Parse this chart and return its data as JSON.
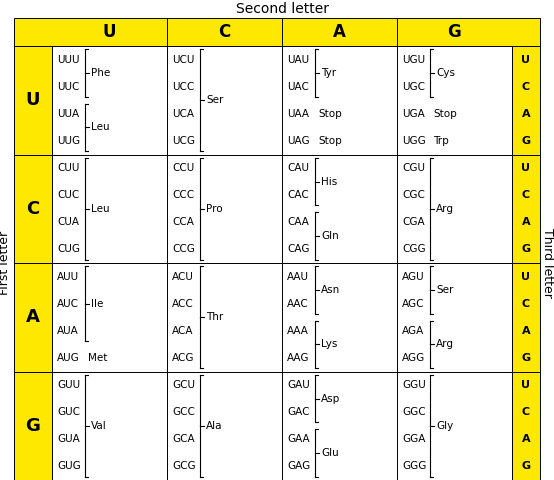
{
  "title": "Second letter",
  "first_letter_label": "First letter",
  "third_letter_label": "Third letter",
  "second_letters": [
    "U",
    "C",
    "A",
    "G"
  ],
  "first_letters": [
    "U",
    "C",
    "A",
    "G"
  ],
  "third_letters": [
    "U",
    "C",
    "A",
    "G"
  ],
  "yellow": "#FFE800",
  "white": "#FFFFFF",
  "cells": {
    "UU": {
      "codons": [
        "UUU",
        "UUC",
        "UUA",
        "UUG"
      ],
      "groups": [
        {
          "aa": "Phe",
          "rows": [
            0,
            1
          ]
        },
        {
          "aa": "Leu",
          "rows": [
            2,
            3
          ]
        }
      ]
    },
    "UC": {
      "codons": [
        "UCU",
        "UCC",
        "UCA",
        "UCG"
      ],
      "groups": [
        {
          "aa": "Ser",
          "rows": [
            0,
            1,
            2,
            3
          ]
        }
      ]
    },
    "UA": {
      "codons": [
        "UAU",
        "UAC",
        "UAA",
        "UAG"
      ],
      "groups": [
        {
          "aa": "Tyr",
          "rows": [
            0,
            1
          ]
        },
        {
          "aa": "Stop",
          "rows": [
            2
          ],
          "inline": true
        },
        {
          "aa": "Stop",
          "rows": [
            3
          ],
          "inline": true
        }
      ]
    },
    "UG": {
      "codons": [
        "UGU",
        "UGC",
        "UGA",
        "UGG"
      ],
      "groups": [
        {
          "aa": "Cys",
          "rows": [
            0,
            1
          ]
        },
        {
          "aa": "Stop",
          "rows": [
            2
          ],
          "inline": true
        },
        {
          "aa": "Trp",
          "rows": [
            3
          ],
          "inline": true
        }
      ]
    },
    "CU": {
      "codons": [
        "CUU",
        "CUC",
        "CUA",
        "CUG"
      ],
      "groups": [
        {
          "aa": "Leu",
          "rows": [
            0,
            1,
            2,
            3
          ]
        }
      ]
    },
    "CC": {
      "codons": [
        "CCU",
        "CCC",
        "CCA",
        "CCG"
      ],
      "groups": [
        {
          "aa": "Pro",
          "rows": [
            0,
            1,
            2,
            3
          ]
        }
      ]
    },
    "CA": {
      "codons": [
        "CAU",
        "CAC",
        "CAA",
        "CAG"
      ],
      "groups": [
        {
          "aa": "His",
          "rows": [
            0,
            1
          ]
        },
        {
          "aa": "Gln",
          "rows": [
            2,
            3
          ]
        }
      ]
    },
    "CG": {
      "codons": [
        "CGU",
        "CGC",
        "CGA",
        "CGG"
      ],
      "groups": [
        {
          "aa": "Arg",
          "rows": [
            0,
            1,
            2,
            3
          ]
        }
      ]
    },
    "AU": {
      "codons": [
        "AUU",
        "AUC",
        "AUA",
        "AUG"
      ],
      "groups": [
        {
          "aa": "Ile",
          "rows": [
            0,
            1,
            2
          ]
        },
        {
          "aa": "Met",
          "rows": [
            3
          ],
          "inline": true
        }
      ]
    },
    "AC": {
      "codons": [
        "ACU",
        "ACC",
        "ACA",
        "ACG"
      ],
      "groups": [
        {
          "aa": "Thr",
          "rows": [
            0,
            1,
            2,
            3
          ]
        }
      ]
    },
    "AA": {
      "codons": [
        "AAU",
        "AAC",
        "AAA",
        "AAG"
      ],
      "groups": [
        {
          "aa": "Asn",
          "rows": [
            0,
            1
          ]
        },
        {
          "aa": "Lys",
          "rows": [
            2,
            3
          ]
        }
      ]
    },
    "AG": {
      "codons": [
        "AGU",
        "AGC",
        "AGA",
        "AGG"
      ],
      "groups": [
        {
          "aa": "Ser",
          "rows": [
            0,
            1
          ]
        },
        {
          "aa": "Arg",
          "rows": [
            2,
            3
          ]
        }
      ]
    },
    "GU": {
      "codons": [
        "GUU",
        "GUC",
        "GUA",
        "GUG"
      ],
      "groups": [
        {
          "aa": "Val",
          "rows": [
            0,
            1,
            2,
            3
          ]
        }
      ]
    },
    "GC": {
      "codons": [
        "GCU",
        "GCC",
        "GCA",
        "GCG"
      ],
      "groups": [
        {
          "aa": "Ala",
          "rows": [
            0,
            1,
            2,
            3
          ]
        }
      ]
    },
    "GA": {
      "codons": [
        "GAU",
        "GAC",
        "GAA",
        "GAG"
      ],
      "groups": [
        {
          "aa": "Asp",
          "rows": [
            0,
            1
          ]
        },
        {
          "aa": "Glu",
          "rows": [
            2,
            3
          ]
        }
      ]
    },
    "GG": {
      "codons": [
        "GGU",
        "GGC",
        "GGA",
        "GGG"
      ],
      "groups": [
        {
          "aa": "Gly",
          "rows": [
            0,
            1,
            2,
            3
          ]
        }
      ]
    }
  }
}
